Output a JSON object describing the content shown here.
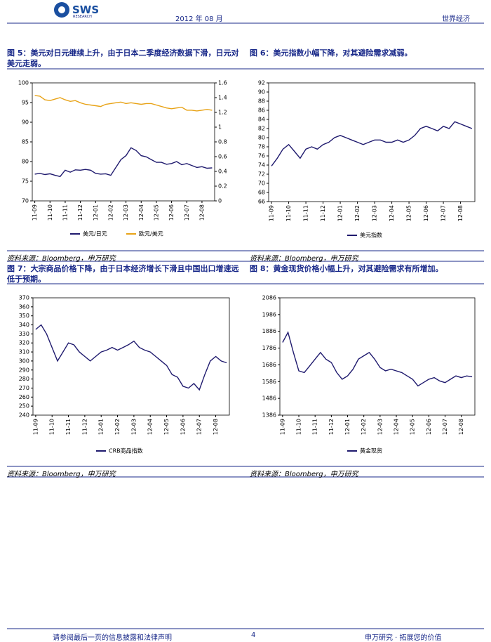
{
  "header": {
    "logo": "SWS",
    "logo_sub": "RESEARCH",
    "date": "2012 年 08 月",
    "section": "世界经济"
  },
  "footer": {
    "left": "请参阅最后一页的信息披露和法律声明",
    "page": "4",
    "right": "申万研究 · 拓展您的价值"
  },
  "chart_data": [
    {
      "type": "line",
      "title": "图 5：美元对日元继续上升，由于日本二季度经济数据下滑，日元对美元走弱。",
      "source": "资料来源：Bloomberg，申万研究",
      "x": [
        "11-09",
        "11-09",
        "11-09",
        "11-10",
        "11-10",
        "11-10",
        "11-11",
        "11-11",
        "11-11",
        "11-12",
        "11-12",
        "11-12",
        "12-01",
        "12-01",
        "12-01",
        "12-02",
        "12-02",
        "12-02",
        "12-03",
        "12-03",
        "12-03",
        "12-04",
        "12-04",
        "12-04",
        "12-05",
        "12-05",
        "12-05",
        "12-06",
        "12-06",
        "12-06",
        "12-07",
        "12-07",
        "12-07",
        "12-08",
        "12-08",
        "12-08"
      ],
      "xticks": [
        "11-09",
        "11-10",
        "11-11",
        "11-12",
        "12-01",
        "12-02",
        "12-03",
        "12-04",
        "12-05",
        "12-06",
        "12-07",
        "12-08"
      ],
      "ylim": [
        70,
        100
      ],
      "yticks": [
        70,
        75,
        80,
        85,
        90,
        95,
        100
      ],
      "y2lim": [
        0,
        1.6
      ],
      "y2ticks": [
        0,
        0.2,
        0.4,
        0.6,
        0.8,
        1,
        1.2,
        1.4,
        1.6
      ],
      "series": [
        {
          "name": "美元/日元",
          "color": "#1f1a6e",
          "values": [
            76.8,
            77.0,
            76.7,
            76.9,
            76.5,
            76.2,
            77.8,
            77.3,
            77.9,
            77.8,
            78.0,
            77.8,
            77.0,
            76.8,
            76.9,
            76.5,
            78.5,
            80.5,
            81.5,
            83.5,
            82.8,
            81.5,
            81.2,
            80.5,
            79.8,
            79.8,
            79.3,
            79.5,
            80.0,
            79.2,
            79.5,
            79.0,
            78.5,
            78.7,
            78.3,
            78.4
          ]
        },
        {
          "name": "欧元/美元",
          "color": "#e8a317",
          "axis": "y2",
          "values": [
            1.43,
            1.42,
            1.37,
            1.36,
            1.38,
            1.4,
            1.37,
            1.35,
            1.36,
            1.33,
            1.31,
            1.3,
            1.29,
            1.28,
            1.31,
            1.32,
            1.33,
            1.34,
            1.32,
            1.33,
            1.32,
            1.31,
            1.32,
            1.32,
            1.3,
            1.28,
            1.26,
            1.25,
            1.26,
            1.27,
            1.23,
            1.23,
            1.22,
            1.23,
            1.24,
            1.23
          ]
        }
      ]
    },
    {
      "type": "line",
      "title": "图 6：美元指数小幅下降，对其避险需求减弱。",
      "source": "资料来源：Bloomberg，申万研究",
      "x": [
        "11-09",
        "11-09",
        "11-09",
        "11-10",
        "11-10",
        "11-10",
        "11-11",
        "11-11",
        "11-11",
        "11-12",
        "11-12",
        "11-12",
        "12-01",
        "12-01",
        "12-01",
        "12-02",
        "12-02",
        "12-02",
        "12-03",
        "12-03",
        "12-03",
        "12-04",
        "12-04",
        "12-04",
        "12-05",
        "12-05",
        "12-05",
        "12-06",
        "12-06",
        "12-06",
        "12-07",
        "12-07",
        "12-07",
        "12-08",
        "12-08",
        "12-08"
      ],
      "xticks": [
        "11-09",
        "11-10",
        "11-11",
        "11-12",
        "12-01",
        "12-02",
        "12-03",
        "12-04",
        "12-05",
        "12-06",
        "12-07",
        "12-08"
      ],
      "ylim": [
        66,
        92
      ],
      "yticks": [
        66,
        68,
        70,
        72,
        74,
        76,
        78,
        80,
        82,
        84,
        86,
        88,
        90,
        92
      ],
      "series": [
        {
          "name": "美元指数",
          "color": "#1f1a6e",
          "values": [
            73.8,
            75.5,
            77.5,
            78.5,
            77.0,
            75.5,
            77.5,
            78.0,
            77.5,
            78.5,
            79.0,
            80.0,
            80.5,
            80.0,
            79.5,
            79.0,
            78.5,
            79.0,
            79.5,
            79.5,
            79.0,
            79.0,
            79.5,
            79.0,
            79.5,
            80.5,
            82.0,
            82.5,
            82.0,
            81.5,
            82.5,
            82.0,
            83.5,
            83.0,
            82.5,
            82.0
          ]
        }
      ]
    },
    {
      "type": "line",
      "title": "图 7：大宗商品价格下降，由于日本经济增长下滑且中国出口增速远低于预期。",
      "source": "资料来源：Bloomberg，申万研究",
      "x": [
        "11-09",
        "11-09",
        "11-09",
        "11-10",
        "11-10",
        "11-10",
        "11-11",
        "11-11",
        "11-11",
        "11-12",
        "11-12",
        "11-12",
        "12-01",
        "12-01",
        "12-01",
        "12-02",
        "12-02",
        "12-02",
        "12-03",
        "12-03",
        "12-03",
        "12-04",
        "12-04",
        "12-04",
        "12-05",
        "12-05",
        "12-05",
        "12-06",
        "12-06",
        "12-06",
        "12-07",
        "12-07",
        "12-07",
        "12-08",
        "12-08",
        "12-08"
      ],
      "xticks": [
        "11-09",
        "11-10",
        "11-11",
        "11-12",
        "12-01",
        "12-02",
        "12-03",
        "12-04",
        "12-05",
        "12-06",
        "12-07",
        "12-08"
      ],
      "ylim": [
        240,
        370
      ],
      "yticks": [
        240,
        250,
        260,
        270,
        280,
        290,
        300,
        310,
        320,
        330,
        340,
        350,
        360,
        370
      ],
      "series": [
        {
          "name": "CRB商品指数",
          "color": "#1f1a6e",
          "values": [
            335,
            340,
            330,
            315,
            300,
            310,
            320,
            318,
            310,
            305,
            300,
            305,
            310,
            312,
            315,
            312,
            315,
            318,
            322,
            315,
            312,
            310,
            305,
            300,
            295,
            285,
            282,
            272,
            270,
            275,
            268,
            285,
            300,
            305,
            300,
            298
          ]
        }
      ]
    },
    {
      "type": "line",
      "title": "图 8：黄金现货价格小幅上升，对其避险需求有所增加。",
      "source": "资料来源：Bloomberg，申万研究",
      "x": [
        "11-09",
        "11-09",
        "11-09",
        "11-10",
        "11-10",
        "11-10",
        "11-11",
        "11-11",
        "11-11",
        "11-12",
        "11-12",
        "11-12",
        "12-01",
        "12-01",
        "12-01",
        "12-02",
        "12-02",
        "12-02",
        "12-03",
        "12-03",
        "12-03",
        "12-04",
        "12-04",
        "12-04",
        "12-05",
        "12-05",
        "12-05",
        "12-06",
        "12-06",
        "12-06",
        "12-07",
        "12-07",
        "12-07",
        "12-08",
        "12-08",
        "12-08"
      ],
      "xticks": [
        "11-09",
        "11-10",
        "11-11",
        "11-12",
        "12-01",
        "12-02",
        "12-03",
        "12-04",
        "12-05",
        "12-06",
        "12-07",
        "12-08"
      ],
      "ylim": [
        1386,
        2086
      ],
      "yticks": [
        1386,
        1486,
        1586,
        1686,
        1786,
        1886,
        1986,
        2086
      ],
      "series": [
        {
          "name": "黄金现货",
          "color": "#1f1a6e",
          "values": [
            1820,
            1880,
            1760,
            1650,
            1640,
            1680,
            1720,
            1760,
            1720,
            1700,
            1640,
            1600,
            1620,
            1660,
            1720,
            1740,
            1760,
            1720,
            1670,
            1650,
            1660,
            1650,
            1640,
            1620,
            1600,
            1560,
            1580,
            1600,
            1610,
            1590,
            1580,
            1600,
            1620,
            1610,
            1620,
            1615
          ]
        }
      ]
    }
  ]
}
